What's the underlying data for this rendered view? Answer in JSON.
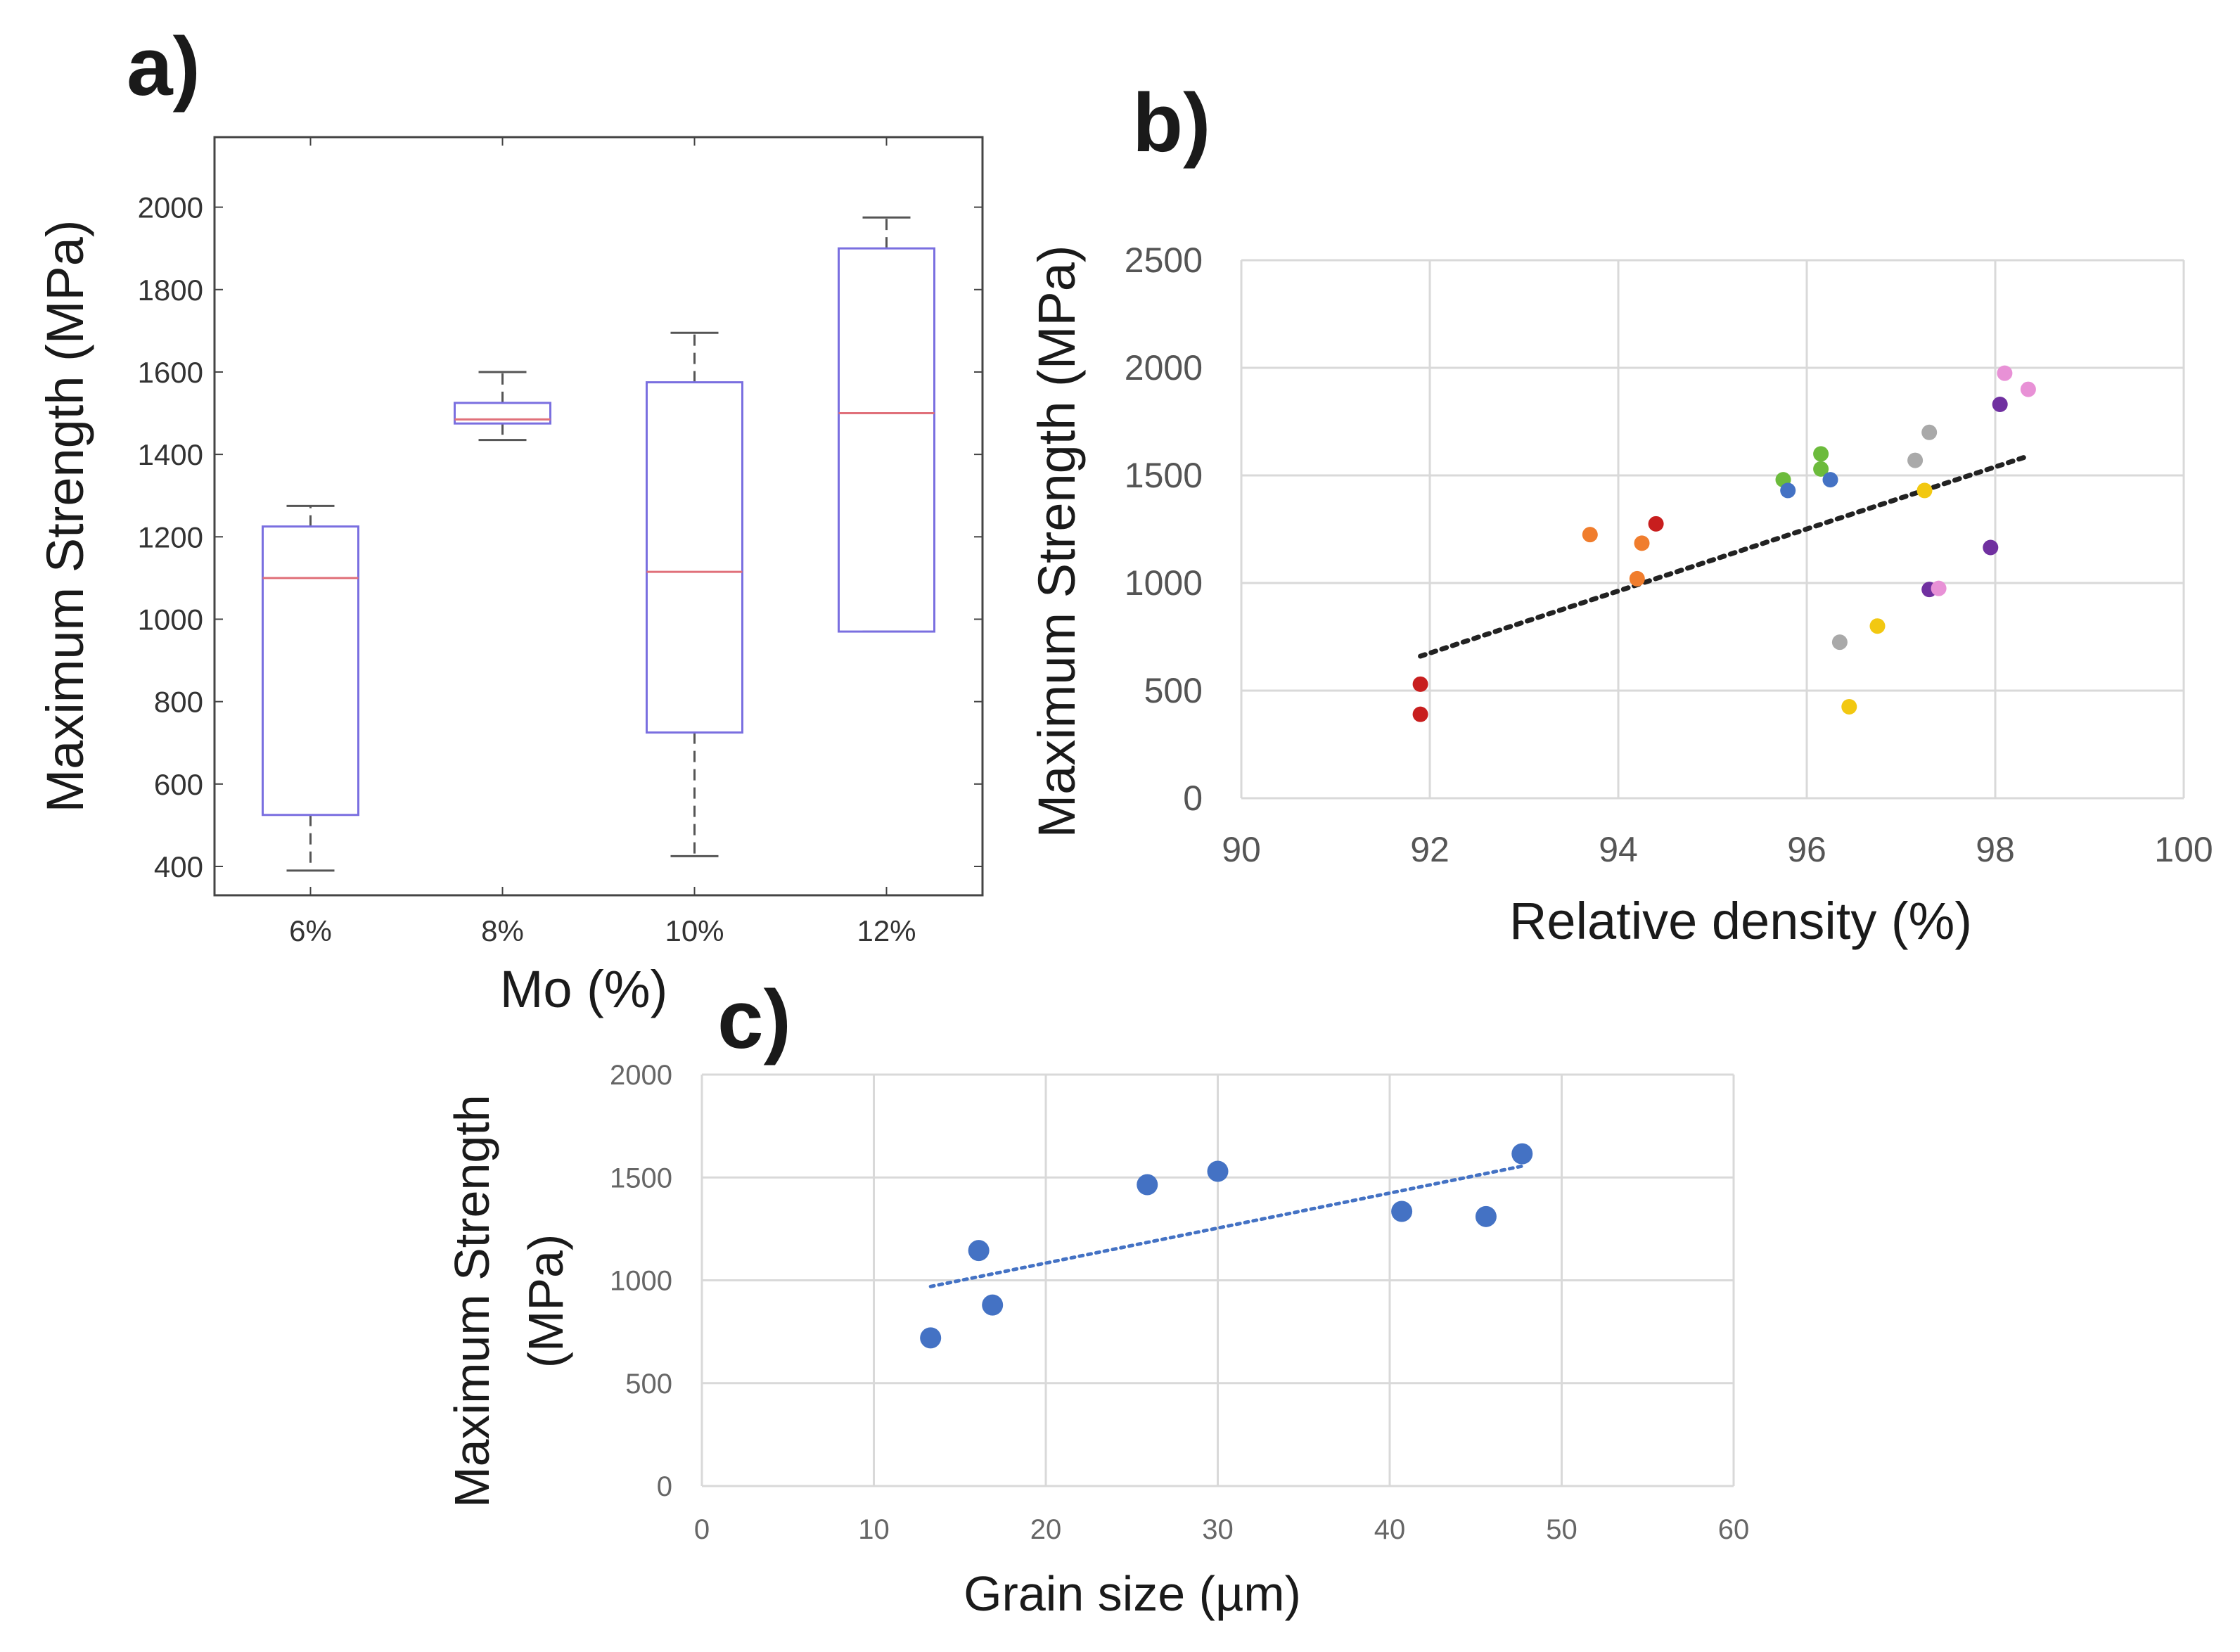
{
  "chart_data": [
    {
      "panel": "a)",
      "type": "box",
      "xlabel": "Mo (%)",
      "ylabel": "Maximum Strength (MPa)",
      "ylim": [
        330,
        2170
      ],
      "yticks": [
        400,
        600,
        800,
        1000,
        1200,
        1400,
        1600,
        1800,
        2000
      ],
      "categories": [
        "6%",
        "8%",
        "10%",
        "12%"
      ],
      "boxes": [
        {
          "category": "6%",
          "whisker_low": 390,
          "q1": 525,
          "median": 1100,
          "q3": 1225,
          "whisker_high": 1275
        },
        {
          "category": "8%",
          "whisker_low": 1435,
          "q1": 1475,
          "median": 1485,
          "q3": 1525,
          "whisker_high": 1600
        },
        {
          "category": "10%",
          "whisker_low": 425,
          "q1": 725,
          "median": 1115,
          "q3": 1575,
          "whisker_high": 1695
        },
        {
          "category": "12%",
          "whisker_low": 970,
          "q1": 970,
          "median": 1500,
          "q3": 1900,
          "whisker_high": 1975
        }
      ],
      "colors": {
        "box": "#7a6fe0",
        "median": "#e0707a",
        "whisker": "#555555"
      }
    },
    {
      "panel": "b)",
      "type": "scatter",
      "xlabel": "Relative density (%)",
      "ylabel": "Maximum Strength (MPa)",
      "xlim": [
        90,
        100
      ],
      "ylim": [
        0,
        2500
      ],
      "xticks": [
        90,
        92,
        94,
        96,
        98,
        100
      ],
      "yticks": [
        0,
        500,
        1000,
        1500,
        2000,
        2500
      ],
      "grid": true,
      "points": [
        {
          "x": 91.9,
          "y": 530,
          "color": "#c81e1e"
        },
        {
          "x": 91.9,
          "y": 390,
          "color": "#c81e1e"
        },
        {
          "x": 94.4,
          "y": 1275,
          "color": "#c81e1e"
        },
        {
          "x": 93.7,
          "y": 1225,
          "color": "#f07d2d"
        },
        {
          "x": 94.25,
          "y": 1185,
          "color": "#f07d2d"
        },
        {
          "x": 94.2,
          "y": 1020,
          "color": "#f07d2d"
        },
        {
          "x": 95.75,
          "y": 1480,
          "color": "#6cbb3c"
        },
        {
          "x": 96.15,
          "y": 1600,
          "color": "#6cbb3c"
        },
        {
          "x": 96.15,
          "y": 1530,
          "color": "#6cbb3c"
        },
        {
          "x": 95.8,
          "y": 1430,
          "color": "#4472c4"
        },
        {
          "x": 96.25,
          "y": 1480,
          "color": "#4472c4"
        },
        {
          "x": 97.15,
          "y": 1570,
          "color": "#a9a9a9"
        },
        {
          "x": 97.3,
          "y": 1700,
          "color": "#a9a9a9"
        },
        {
          "x": 96.35,
          "y": 725,
          "color": "#a9a9a9"
        },
        {
          "x": 97.25,
          "y": 1430,
          "color": "#f2c811"
        },
        {
          "x": 96.75,
          "y": 800,
          "color": "#f2c811"
        },
        {
          "x": 96.45,
          "y": 425,
          "color": "#f2c811"
        },
        {
          "x": 98.05,
          "y": 1830,
          "color": "#7030a0"
        },
        {
          "x": 97.95,
          "y": 1165,
          "color": "#7030a0"
        },
        {
          "x": 97.3,
          "y": 970,
          "color": "#7030a0"
        },
        {
          "x": 98.1,
          "y": 1975,
          "color": "#e891d6"
        },
        {
          "x": 98.35,
          "y": 1900,
          "color": "#e891d6"
        },
        {
          "x": 97.4,
          "y": 975,
          "color": "#e891d6"
        }
      ],
      "trendline": {
        "x": [
          91.9,
          98.35
        ],
        "y": [
          660,
          1590
        ],
        "color": "#222222",
        "style": "dotted"
      }
    },
    {
      "panel": "c)",
      "type": "scatter",
      "xlabel": "Grain size (µm)",
      "ylabel_lines": [
        "Maximum Strength",
        "(MPa)"
      ],
      "xlim": [
        0,
        60
      ],
      "ylim": [
        0,
        2000
      ],
      "xticks": [
        0,
        10,
        20,
        30,
        40,
        50,
        60
      ],
      "yticks": [
        0,
        500,
        1000,
        1500,
        2000
      ],
      "grid": true,
      "points": [
        {
          "x": 13.3,
          "y": 720
        },
        {
          "x": 16.1,
          "y": 1145
        },
        {
          "x": 16.9,
          "y": 880
        },
        {
          "x": 25.9,
          "y": 1465
        },
        {
          "x": 30.0,
          "y": 1530
        },
        {
          "x": 40.7,
          "y": 1335
        },
        {
          "x": 45.6,
          "y": 1310
        },
        {
          "x": 47.7,
          "y": 1615
        }
      ],
      "point_color": "#4472c4",
      "trendline": {
        "x": [
          13.3,
          47.7
        ],
        "y": [
          970,
          1555
        ],
        "color": "#4472c4",
        "style": "dotted"
      }
    }
  ]
}
